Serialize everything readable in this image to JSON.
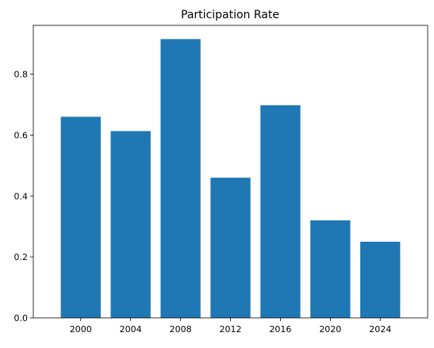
{
  "chart_data": {
    "type": "bar",
    "title": "Participation Rate",
    "xlabel": "",
    "ylabel": "",
    "categories": [
      "2000",
      "2004",
      "2008",
      "2012",
      "2016",
      "2020",
      "2024"
    ],
    "values": [
      0.66,
      0.613,
      0.915,
      0.46,
      0.698,
      0.32,
      0.25
    ],
    "ylim": [
      0,
      0.96
    ],
    "yticks": [
      "0.0",
      "0.2",
      "0.4",
      "0.6",
      "0.8"
    ],
    "grid": false,
    "bar_color": "#1f77b4"
  }
}
